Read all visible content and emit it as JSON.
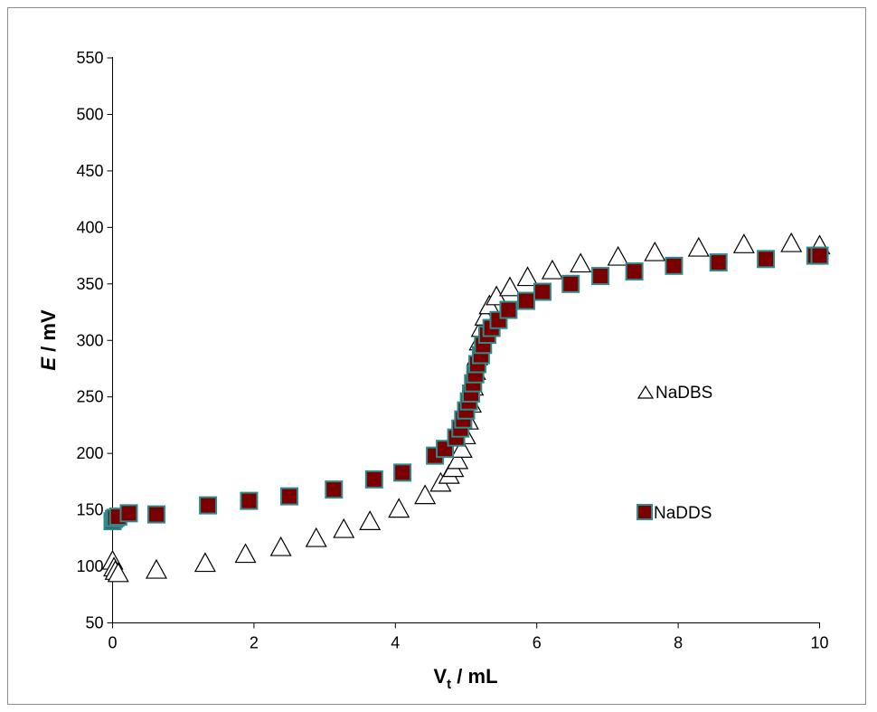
{
  "chart_data": {
    "type": "scatter",
    "xlim": [
      0,
      10
    ],
    "ylim": [
      50,
      550
    ],
    "xticks": [
      0,
      2,
      4,
      6,
      8,
      10
    ],
    "yticks": [
      50,
      100,
      150,
      200,
      250,
      300,
      350,
      400,
      450,
      500,
      550
    ],
    "xlabel_main": "V",
    "xlabel_sub": "t",
    "xlabel_rest": " / mL",
    "ylabel_main": "E",
    "ylabel_rest": " / mV",
    "grid": false,
    "legend_position": "right",
    "series": [
      {
        "name": "NaDBS",
        "marker": "triangle-open",
        "color": "#000000",
        "fill": "#ffffff",
        "points": [
          [
            0.0,
            104
          ],
          [
            0.02,
            98
          ],
          [
            0.04,
            95
          ],
          [
            0.08,
            93
          ],
          [
            0.62,
            96
          ],
          [
            1.31,
            102
          ],
          [
            1.88,
            110
          ],
          [
            2.38,
            116
          ],
          [
            2.88,
            124
          ],
          [
            3.27,
            132
          ],
          [
            3.64,
            139
          ],
          [
            4.05,
            150
          ],
          [
            4.42,
            162
          ],
          [
            4.64,
            173
          ],
          [
            4.76,
            180
          ],
          [
            4.82,
            186
          ],
          [
            4.88,
            193
          ],
          [
            4.94,
            203
          ],
          [
            4.99,
            215
          ],
          [
            5.03,
            228
          ],
          [
            5.07,
            243
          ],
          [
            5.1,
            258
          ],
          [
            5.13,
            272
          ],
          [
            5.16,
            285
          ],
          [
            5.19,
            298
          ],
          [
            5.22,
            310
          ],
          [
            5.27,
            320
          ],
          [
            5.33,
            330
          ],
          [
            5.43,
            338
          ],
          [
            5.62,
            346
          ],
          [
            5.87,
            355
          ],
          [
            6.22,
            361
          ],
          [
            6.62,
            367
          ],
          [
            7.15,
            373
          ],
          [
            7.67,
            377
          ],
          [
            8.29,
            381
          ],
          [
            8.93,
            384
          ],
          [
            9.6,
            385
          ],
          [
            10.0,
            383
          ]
        ]
      },
      {
        "name": "NaDDS",
        "marker": "square-filled",
        "color": "#7a0000",
        "stroke": "#2e8b8b",
        "points": [
          [
            0.0,
            140
          ],
          [
            0.02,
            142
          ],
          [
            0.04,
            143
          ],
          [
            0.08,
            144
          ],
          [
            0.23,
            147
          ],
          [
            0.62,
            146
          ],
          [
            1.35,
            154
          ],
          [
            1.93,
            158
          ],
          [
            2.5,
            162
          ],
          [
            3.13,
            168
          ],
          [
            3.7,
            177
          ],
          [
            4.1,
            183
          ],
          [
            4.56,
            198
          ],
          [
            4.7,
            204
          ],
          [
            4.86,
            214
          ],
          [
            4.92,
            222
          ],
          [
            4.96,
            230
          ],
          [
            5.0,
            238
          ],
          [
            5.04,
            246
          ],
          [
            5.07,
            253
          ],
          [
            5.1,
            262
          ],
          [
            5.13,
            270
          ],
          [
            5.16,
            279
          ],
          [
            5.21,
            287
          ],
          [
            5.24,
            296
          ],
          [
            5.3,
            305
          ],
          [
            5.36,
            311
          ],
          [
            5.46,
            318
          ],
          [
            5.6,
            327
          ],
          [
            5.85,
            335
          ],
          [
            6.08,
            343
          ],
          [
            6.48,
            350
          ],
          [
            6.9,
            357
          ],
          [
            7.38,
            361
          ],
          [
            7.94,
            366
          ],
          [
            8.57,
            369
          ],
          [
            9.24,
            372
          ],
          [
            9.94,
            375
          ],
          [
            10.0,
            375
          ]
        ]
      }
    ]
  }
}
